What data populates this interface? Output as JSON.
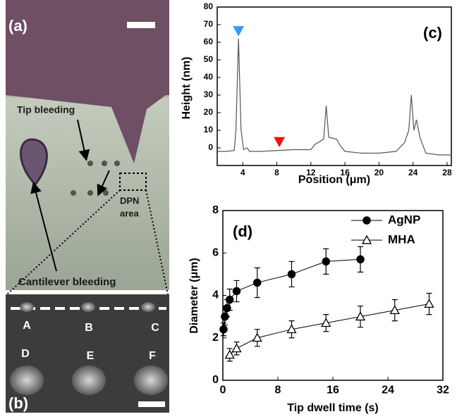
{
  "panel_a": {
    "label": "(a)",
    "tip_bleeding": "Tip bleeding",
    "dpn_area": [
      "DPN",
      "area"
    ],
    "cantilever_bleeding": "Cantilever bleeding"
  },
  "panel_b": {
    "label": "(b)",
    "spot_labels": [
      "A",
      "B",
      "C",
      "D",
      "E",
      "F"
    ]
  },
  "chart_data": [
    {
      "type": "line",
      "panel_label": "(c)",
      "x_label": "Position (μm)",
      "y_label": "Height (nm)",
      "x": [
        1,
        2,
        3,
        3.2,
        3.5,
        3.8,
        4.1,
        4.5,
        4.8,
        6,
        8,
        10,
        12,
        12.5,
        13.5,
        13.8,
        14.1,
        15,
        15.5,
        16,
        18,
        20,
        22,
        23,
        23.5,
        23.8,
        24.1,
        24.4,
        24.8,
        25.5,
        27,
        28.5
      ],
      "values": [
        -2,
        -2,
        -1.5,
        10,
        62,
        10,
        -1,
        0,
        -2,
        -2,
        -1.5,
        -1,
        -1,
        2,
        5,
        24,
        6,
        5,
        1,
        -2,
        -3,
        -3,
        -2,
        3,
        10,
        30,
        10,
        16,
        6,
        -3,
        -4,
        -4
      ],
      "color": "#555555",
      "markers": [
        {
          "x": 3.5,
          "y": 65,
          "color": "#3399ff"
        },
        {
          "x": 8.3,
          "y": 2,
          "color": "#ee1111"
        }
      ],
      "xlim": [
        1,
        28.5
      ],
      "ylim": [
        -10,
        80
      ],
      "xticks": [
        4,
        8,
        12,
        16,
        20,
        24,
        28
      ],
      "yticks": [
        0,
        10,
        20,
        30,
        40,
        50,
        60,
        70,
        80
      ]
    },
    {
      "type": "scatter",
      "panel_label": "(d)",
      "x_label": "Tip dwell time  (s)",
      "y_label": "Diameter  (μm)",
      "series": [
        {
          "name": "AgNP",
          "color": "#000000",
          "marker": "circle",
          "filled": true,
          "x": [
            0.1,
            0.3,
            0.6,
            1,
            2,
            5,
            10,
            15,
            20
          ],
          "values": [
            2.4,
            3.0,
            3.4,
            3.8,
            4.2,
            4.6,
            5.0,
            5.6,
            5.7
          ],
          "errors": [
            0.3,
            0.4,
            0.4,
            0.5,
            0.5,
            0.7,
            0.6,
            0.6,
            0.6
          ]
        },
        {
          "name": "MHA",
          "color": "#000000",
          "marker": "triangle",
          "filled": false,
          "x": [
            1,
            2,
            5,
            10,
            15,
            20,
            25,
            30
          ],
          "values": [
            1.2,
            1.5,
            2.0,
            2.4,
            2.7,
            3.0,
            3.3,
            3.6
          ],
          "errors": [
            0.3,
            0.3,
            0.4,
            0.4,
            0.4,
            0.5,
            0.5,
            0.5
          ]
        }
      ],
      "xlim": [
        0,
        32
      ],
      "ylim": [
        0,
        8
      ],
      "xticks": [
        0,
        8,
        16,
        24,
        32
      ],
      "yticks": [
        0,
        2,
        4,
        6,
        8
      ],
      "legend": "upper right"
    }
  ]
}
